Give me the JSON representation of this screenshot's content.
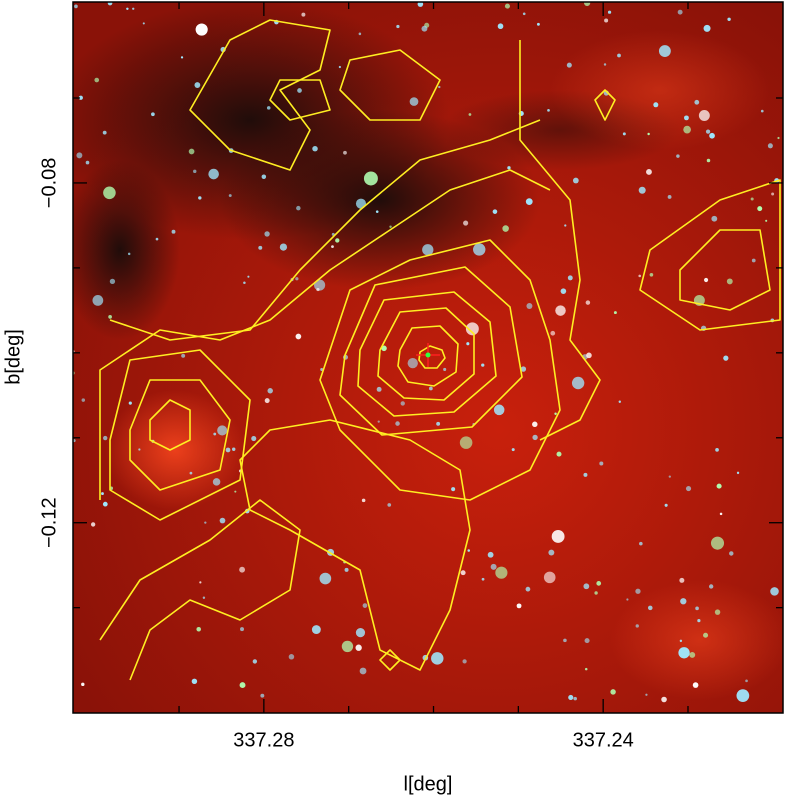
{
  "chart_data": {
    "type": "image",
    "xlabel": "l[deg]",
    "ylabel": "b[deg]",
    "xlim": [
      337.3025,
      337.2188
    ],
    "ylim": [
      -0.1424,
      -0.0587
    ],
    "xticks": [
      337.28,
      337.24
    ],
    "yticks": [
      {
        "value": -0.08,
        "label": "−0.08"
      },
      {
        "value": -0.12,
        "label": "−0.12"
      }
    ],
    "minor_xticks": [
      337.29,
      337.27,
      337.26,
      337.25,
      337.23
    ],
    "minor_yticks": [
      -0.07,
      -0.09,
      -0.1,
      -0.11,
      -0.13
    ],
    "contour_color": "#ffee22"
  }
}
